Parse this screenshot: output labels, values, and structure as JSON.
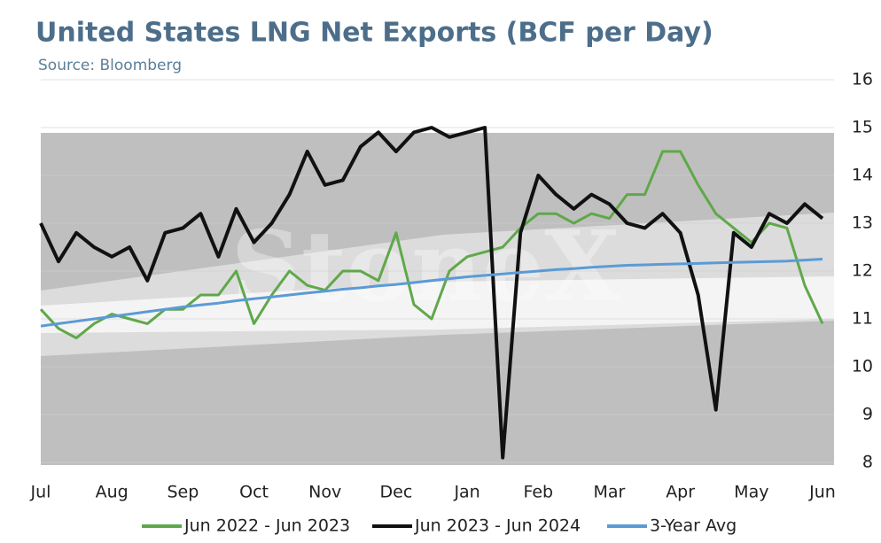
{
  "chart_data": {
    "type": "line",
    "title": "United States LNG Net Exports (BCF per Day)",
    "subtitle": "Source: Bloomberg",
    "watermark": "StoneX",
    "categories": [
      "Jul",
      null,
      null,
      null,
      "Aug",
      null,
      null,
      null,
      "Sep",
      null,
      null,
      null,
      "Oct",
      null,
      null,
      null,
      "Nov",
      null,
      null,
      null,
      "Dec",
      null,
      null,
      null,
      "Jan",
      null,
      null,
      null,
      "Feb",
      null,
      null,
      null,
      "Mar",
      null,
      null,
      null,
      "Apr",
      null,
      null,
      null,
      "May",
      null,
      null,
      null,
      "Jun"
    ],
    "series": [
      {
        "name": "Jun 2022 - Jun 2023",
        "color": "#5fa84a",
        "values": [
          11.2,
          10.8,
          10.6,
          10.9,
          11.1,
          11.0,
          10.9,
          11.2,
          11.2,
          11.5,
          11.5,
          12.0,
          10.9,
          11.5,
          12.0,
          11.7,
          11.6,
          12.0,
          12.0,
          11.8,
          12.8,
          11.3,
          11.0,
          12.0,
          12.3,
          12.4,
          12.5,
          12.9,
          13.2,
          13.2,
          13.0,
          13.2,
          13.1,
          13.6,
          13.6,
          14.5,
          14.5,
          13.8,
          13.2,
          12.9,
          12.6,
          13.0,
          12.9,
          11.7,
          10.9
        ]
      },
      {
        "name": "Jun 2023 - Jun 2024",
        "color": "#111111",
        "values": [
          13.0,
          12.2,
          12.8,
          12.5,
          12.3,
          12.5,
          11.8,
          12.8,
          12.9,
          13.2,
          12.3,
          13.3,
          12.6,
          13.0,
          13.6,
          14.5,
          13.8,
          13.9,
          14.6,
          14.9,
          14.5,
          14.9,
          15.0,
          14.8,
          14.9,
          15.0,
          8.1,
          12.8,
          14.0,
          13.6,
          13.3,
          13.6,
          13.4,
          13.0,
          12.9,
          13.2,
          12.8,
          11.5,
          9.1,
          12.8,
          12.5,
          13.2,
          13.0,
          13.4,
          13.1
        ]
      },
      {
        "name": "3-Year Avg",
        "color": "#5b9bd5",
        "values": [
          10.85,
          10.9,
          10.95,
          11.0,
          11.05,
          11.1,
          11.15,
          11.2,
          11.25,
          11.29,
          11.33,
          11.38,
          11.42,
          11.46,
          11.5,
          11.54,
          11.58,
          11.62,
          11.65,
          11.69,
          11.72,
          11.76,
          11.8,
          11.84,
          11.88,
          11.91,
          11.94,
          11.97,
          12.0,
          12.03,
          12.05,
          12.08,
          12.1,
          12.12,
          12.13,
          12.14,
          12.15,
          12.16,
          12.17,
          12.18,
          12.19,
          12.2,
          12.21,
          12.23,
          12.25
        ]
      }
    ],
    "ylim": [
      8,
      16
    ],
    "yticks": [
      8,
      9,
      10,
      11,
      12,
      13,
      14,
      15,
      16
    ],
    "grid": true,
    "legend": "bottom"
  }
}
